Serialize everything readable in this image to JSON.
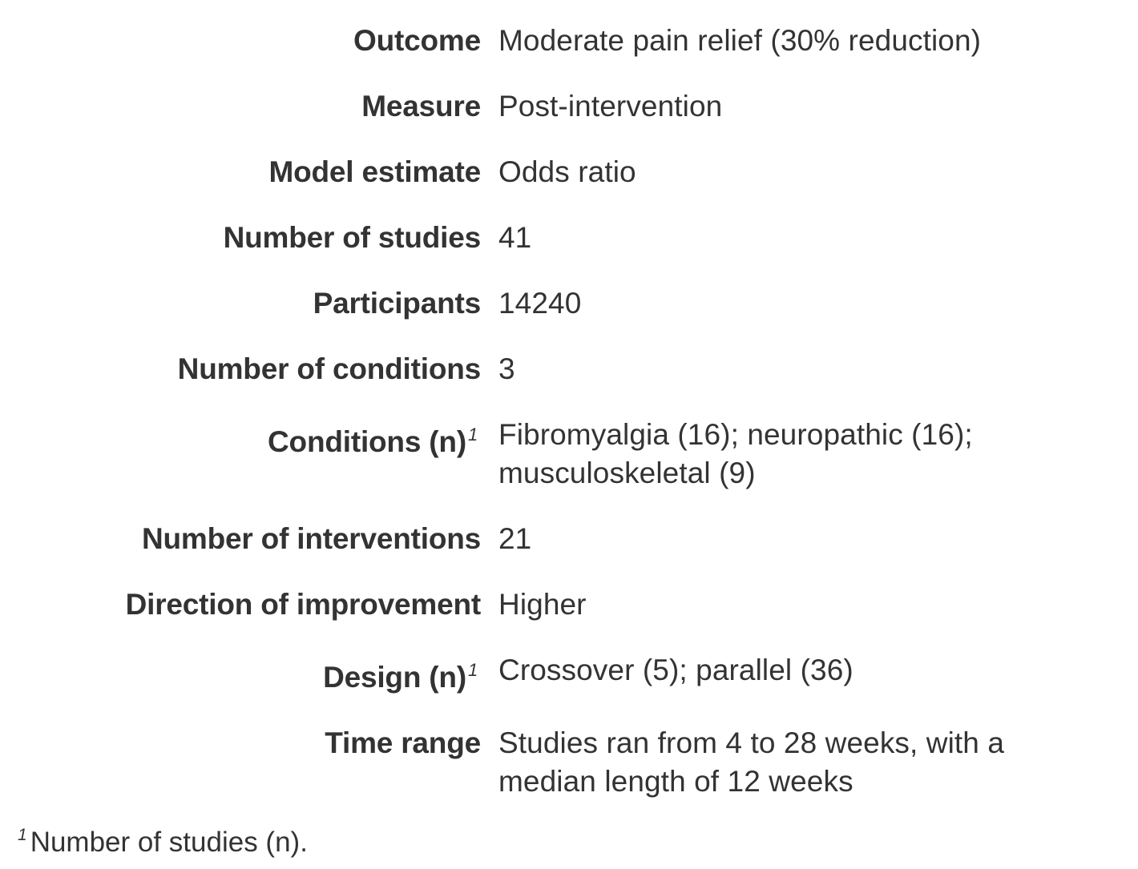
{
  "rows": [
    {
      "label": "Outcome",
      "value": "Moderate pain relief (30% reduction)"
    },
    {
      "label": "Measure",
      "value": "Post-intervention"
    },
    {
      "label": "Model estimate",
      "value": "Odds ratio"
    },
    {
      "label": "Number of studies",
      "value": "41"
    },
    {
      "label": "Participants",
      "value": "14240"
    },
    {
      "label": "Number of conditions",
      "value": "3"
    },
    {
      "label": "Conditions (n)",
      "sup": "1",
      "value": "Fibromyalgia (16); neuropathic (16); musculoskeletal (9)"
    },
    {
      "label": "Number of interventions",
      "value": "21"
    },
    {
      "label": "Direction of improvement",
      "value": "Higher"
    },
    {
      "label": "Design (n)",
      "sup": "1",
      "value": "Crossover (5); parallel (36)"
    },
    {
      "label": "Time range",
      "value": "Studies ran from 4 to 28 weeks, with a median length of 12 weeks"
    }
  ],
  "footnote": {
    "mark": "1",
    "text": "Number of studies (n)."
  }
}
